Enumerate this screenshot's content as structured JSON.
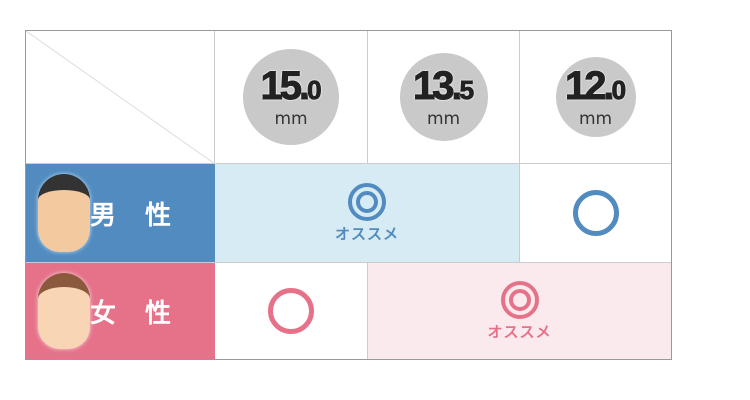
{
  "sizes": [
    {
      "main": "15.",
      "dec": "0",
      "unit": "mm"
    },
    {
      "main": "13.",
      "dec": "5",
      "unit": "mm"
    },
    {
      "main": "12.",
      "dec": "0",
      "unit": "mm"
    }
  ],
  "rows": {
    "male": {
      "label": "男 性",
      "color": "#528bbf",
      "bg": "#d7ebf4"
    },
    "female": {
      "label": "女 性",
      "color": "#e57289",
      "bg": "#fbeaed"
    }
  },
  "recommend_label": "オススメ"
}
